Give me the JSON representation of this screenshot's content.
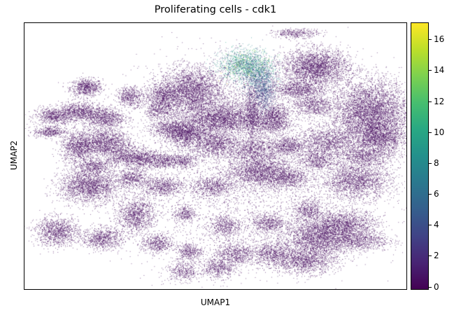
{
  "chart_data": {
    "type": "scatter",
    "title": "Proliferating cells - cdk1",
    "xlabel": "UMAP1",
    "ylabel": "UMAP2",
    "xlim": [
      -12,
      14
    ],
    "ylim": [
      -10,
      14
    ],
    "grid": false,
    "colormap": "viridis",
    "colorbar": {
      "label": "",
      "range": [
        -0.2,
        17.1
      ],
      "ticks": [
        0,
        2,
        4,
        6,
        8,
        10,
        12,
        14,
        16
      ],
      "tick_labels": [
        "0",
        "2",
        "4",
        "6",
        "8",
        "10",
        "12",
        "14",
        "16"
      ]
    },
    "clusters": [
      {
        "x": 3.5,
        "y": 5.9,
        "sx": 0.3,
        "sy": 1.25,
        "n": 900,
        "value": 0.4
      },
      {
        "x": -7.8,
        "y": 8.2,
        "sx": 0.55,
        "sy": 0.4,
        "n": 700,
        "value": 0.3
      },
      {
        "x": -10.0,
        "y": 5.6,
        "sx": 0.65,
        "sy": 0.4,
        "n": 700,
        "value": 0.3
      },
      {
        "x": -10.3,
        "y": 4.2,
        "sx": 0.55,
        "sy": 0.25,
        "n": 400,
        "value": 0.3
      },
      {
        "x": -6.6,
        "y": 5.5,
        "sx": 0.7,
        "sy": 0.5,
        "n": 900,
        "value": 0.3
      },
      {
        "x": -8.3,
        "y": 6.0,
        "sx": 0.7,
        "sy": 0.45,
        "n": 800,
        "value": 0.3
      },
      {
        "x": -4.8,
        "y": 7.4,
        "sx": 0.45,
        "sy": 0.45,
        "n": 500,
        "value": 0.3
      },
      {
        "x": -2.6,
        "y": 7.5,
        "sx": 0.6,
        "sy": 0.5,
        "n": 600,
        "value": 0.3
      },
      {
        "x": -2.8,
        "y": 6.2,
        "sx": 0.6,
        "sy": 0.5,
        "n": 500,
        "value": 0.3
      },
      {
        "x": -0.7,
        "y": 7.9,
        "sx": 1.05,
        "sy": 1.05,
        "n": 2600,
        "value": 0.3
      },
      {
        "x": 0.5,
        "y": 5.3,
        "sx": 0.95,
        "sy": 0.7,
        "n": 1000,
        "value": 0.3
      },
      {
        "x": 3.1,
        "y": 10.2,
        "sx": 0.9,
        "sy": 0.7,
        "n": 1600,
        "value": 7.8
      },
      {
        "x": 4.0,
        "y": 8.9,
        "sx": 0.55,
        "sy": 0.7,
        "n": 700,
        "value": 4.6
      },
      {
        "x": 4.3,
        "y": 7.5,
        "sx": 0.35,
        "sy": 0.7,
        "n": 500,
        "value": 3.2
      },
      {
        "x": 6.5,
        "y": 13.1,
        "sx": 0.8,
        "sy": 0.2,
        "n": 350,
        "value": 0.3
      },
      {
        "x": 7.8,
        "y": 10.0,
        "sx": 1.15,
        "sy": 0.85,
        "n": 2800,
        "value": 0.3
      },
      {
        "x": 6.5,
        "y": 8.0,
        "sx": 0.9,
        "sy": 0.4,
        "n": 800,
        "value": 0.3
      },
      {
        "x": 7.6,
        "y": 6.6,
        "sx": 0.7,
        "sy": 0.55,
        "n": 700,
        "value": 0.3
      },
      {
        "x": 11.5,
        "y": 5.8,
        "sx": 1.35,
        "sy": 1.55,
        "n": 5200,
        "value": 0.3
      },
      {
        "x": 12.2,
        "y": 3.6,
        "sx": 0.85,
        "sy": 0.7,
        "n": 1200,
        "value": 0.3
      },
      {
        "x": 8.6,
        "y": 3.2,
        "sx": 1.15,
        "sy": 0.7,
        "n": 1300,
        "value": 0.3
      },
      {
        "x": 11.1,
        "y": 2.0,
        "sx": 1.0,
        "sy": 0.45,
        "n": 700,
        "value": 0.3
      },
      {
        "x": 5.0,
        "y": 5.9,
        "sx": 0.5,
        "sy": 0.4,
        "n": 500,
        "value": 0.3
      },
      {
        "x": 4.8,
        "y": 4.9,
        "sx": 0.7,
        "sy": 0.45,
        "n": 700,
        "value": 0.3
      },
      {
        "x": 1.9,
        "y": 5.4,
        "sx": 0.9,
        "sy": 0.7,
        "n": 1200,
        "value": 0.3
      },
      {
        "x": -1.0,
        "y": 4.0,
        "sx": 0.7,
        "sy": 0.6,
        "n": 1200,
        "value": 0.3
      },
      {
        "x": 1.0,
        "y": 3.1,
        "sx": 0.8,
        "sy": 0.6,
        "n": 1000,
        "value": 0.3
      },
      {
        "x": -2.2,
        "y": 4.5,
        "sx": 0.7,
        "sy": 0.45,
        "n": 600,
        "value": 0.3
      },
      {
        "x": -6.6,
        "y": 3.2,
        "sx": 0.95,
        "sy": 0.65,
        "n": 1600,
        "value": 0.3
      },
      {
        "x": -8.4,
        "y": 2.8,
        "sx": 0.6,
        "sy": 0.7,
        "n": 900,
        "value": 0.3
      },
      {
        "x": -5.0,
        "y": 1.9,
        "sx": 0.7,
        "sy": 0.45,
        "n": 700,
        "value": 0.3
      },
      {
        "x": -7.3,
        "y": 1.1,
        "sx": 0.7,
        "sy": 0.35,
        "n": 500,
        "value": 0.3
      },
      {
        "x": -3.8,
        "y": 1.7,
        "sx": 0.55,
        "sy": 0.45,
        "n": 500,
        "value": 0.3
      },
      {
        "x": -2.5,
        "y": 1.6,
        "sx": 0.5,
        "sy": 0.35,
        "n": 400,
        "value": 0.3
      },
      {
        "x": -1.2,
        "y": 1.6,
        "sx": 0.5,
        "sy": 0.4,
        "n": 400,
        "value": 0.3
      },
      {
        "x": 3.6,
        "y": 2.6,
        "sx": 0.9,
        "sy": 0.6,
        "n": 900,
        "value": 0.3
      },
      {
        "x": 5.9,
        "y": 2.9,
        "sx": 0.55,
        "sy": 0.45,
        "n": 600,
        "value": 0.3
      },
      {
        "x": 7.8,
        "y": 1.6,
        "sx": 0.6,
        "sy": 0.45,
        "n": 500,
        "value": 0.3
      },
      {
        "x": -7.6,
        "y": -0.7,
        "sx": 1.05,
        "sy": 0.75,
        "n": 2000,
        "value": 0.3
      },
      {
        "x": -4.7,
        "y": 0.0,
        "sx": 0.55,
        "sy": 0.4,
        "n": 500,
        "value": 0.3
      },
      {
        "x": -2.6,
        "y": -0.7,
        "sx": 0.75,
        "sy": 0.45,
        "n": 700,
        "value": 0.3
      },
      {
        "x": 4.0,
        "y": 0.6,
        "sx": 1.15,
        "sy": 0.7,
        "n": 1900,
        "value": 0.3
      },
      {
        "x": 6.0,
        "y": 0.0,
        "sx": 0.7,
        "sy": 0.5,
        "n": 600,
        "value": 0.3
      },
      {
        "x": 10.6,
        "y": -0.2,
        "sx": 1.2,
        "sy": 0.85,
        "n": 2000,
        "value": 0.3
      },
      {
        "x": 0.8,
        "y": -0.7,
        "sx": 0.75,
        "sy": 0.45,
        "n": 600,
        "value": 0.3
      },
      {
        "x": -4.4,
        "y": -3.3,
        "sx": 0.65,
        "sy": 0.8,
        "n": 1100,
        "value": 0.3
      },
      {
        "x": -1.1,
        "y": -3.2,
        "sx": 0.35,
        "sy": 0.4,
        "n": 300,
        "value": 0.3
      },
      {
        "x": 1.6,
        "y": -4.3,
        "sx": 0.55,
        "sy": 0.5,
        "n": 500,
        "value": 0.3
      },
      {
        "x": 4.6,
        "y": -4.0,
        "sx": 0.55,
        "sy": 0.45,
        "n": 500,
        "value": 0.3
      },
      {
        "x": 7.3,
        "y": -2.9,
        "sx": 0.55,
        "sy": 0.5,
        "n": 500,
        "value": 0.3
      },
      {
        "x": 9.8,
        "y": -4.2,
        "sx": 1.1,
        "sy": 0.65,
        "n": 1500,
        "value": 0.3
      },
      {
        "x": 7.8,
        "y": -5.4,
        "sx": 1.1,
        "sy": 0.9,
        "n": 2200,
        "value": 0.3
      },
      {
        "x": 10.6,
        "y": -5.6,
        "sx": 1.1,
        "sy": 0.5,
        "n": 900,
        "value": 0.3
      },
      {
        "x": 4.8,
        "y": -6.8,
        "sx": 0.7,
        "sy": 0.55,
        "n": 700,
        "value": 0.3
      },
      {
        "x": 7.0,
        "y": -7.5,
        "sx": 1.1,
        "sy": 0.55,
        "n": 1200,
        "value": 0.3
      },
      {
        "x": -9.8,
        "y": -4.8,
        "sx": 0.75,
        "sy": 0.65,
        "n": 1100,
        "value": 0.3
      },
      {
        "x": -6.7,
        "y": -5.4,
        "sx": 0.7,
        "sy": 0.5,
        "n": 800,
        "value": 0.3
      },
      {
        "x": -3.0,
        "y": -5.9,
        "sx": 0.55,
        "sy": 0.45,
        "n": 500,
        "value": 0.3
      },
      {
        "x": -0.8,
        "y": -6.6,
        "sx": 0.45,
        "sy": 0.4,
        "n": 400,
        "value": 0.3
      },
      {
        "x": 2.3,
        "y": -6.8,
        "sx": 0.7,
        "sy": 0.55,
        "n": 700,
        "value": 0.3
      },
      {
        "x": -1.2,
        "y": -8.4,
        "sx": 0.6,
        "sy": 0.45,
        "n": 400,
        "value": 0.3
      },
      {
        "x": 1.2,
        "y": -8.1,
        "sx": 0.6,
        "sy": 0.45,
        "n": 500,
        "value": 0.3
      },
      {
        "x": 1.5,
        "y": 6.5,
        "sx": 2.8,
        "sy": 2.2,
        "n": 1800,
        "value": 0.3
      },
      {
        "x": 3.0,
        "y": -2.0,
        "sx": 4.2,
        "sy": 3.2,
        "n": 2600,
        "value": 0.3
      }
    ]
  }
}
